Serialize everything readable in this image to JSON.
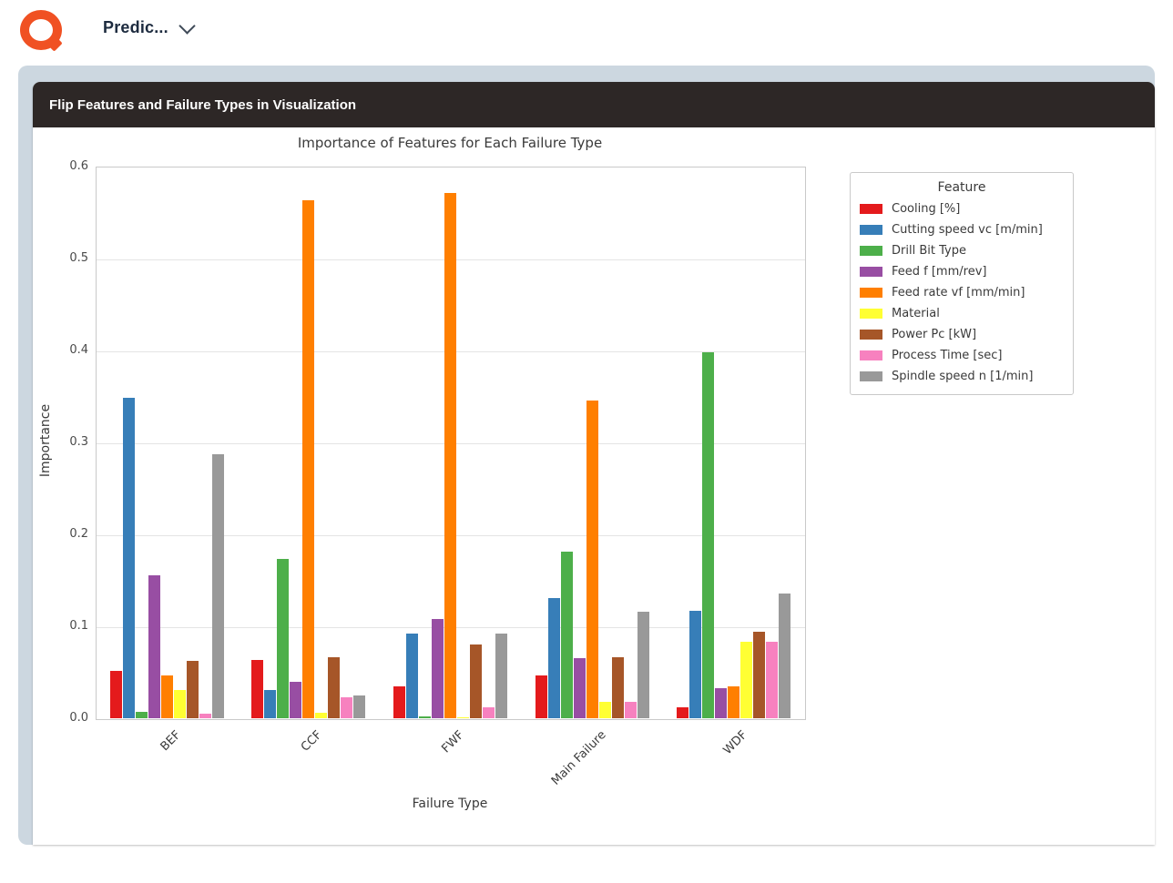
{
  "app": {
    "menu_label": "Predic...",
    "logo_color": "#f05123"
  },
  "card": {
    "header_title": "Flip Features and Failure Types in Visualization",
    "header_bg": "#2d2726",
    "panel_bg": "#ccd7e0"
  },
  "chart_data": {
    "type": "bar",
    "title": "Importance of Features for Each Failure Type",
    "xlabel": "Failure Type",
    "ylabel": "Importance",
    "ylim": [
      0,
      0.6
    ],
    "yticks": [
      "0.0",
      "0.1",
      "0.2",
      "0.3",
      "0.4",
      "0.5",
      "0.6"
    ],
    "grid": "horizontal",
    "legend_title": "Feature",
    "legend_position": "outside-right",
    "categories": [
      "BEF",
      "CCF",
      "FWF",
      "Main Failure",
      "WDF"
    ],
    "series": [
      {
        "name": "Cooling [%]",
        "color": "#e41a1c",
        "values": [
          0.051,
          0.063,
          0.035,
          0.047,
          0.012
        ]
      },
      {
        "name": "Cutting speed vc [m/min]",
        "color": "#377eb8",
        "values": [
          0.349,
          0.031,
          0.092,
          0.131,
          0.117
        ]
      },
      {
        "name": "Drill Bit Type",
        "color": "#4daf4a",
        "values": [
          0.007,
          0.173,
          0.002,
          0.181,
          0.398
        ]
      },
      {
        "name": "Feed f [mm/rev]",
        "color": "#984ea3",
        "values": [
          0.155,
          0.04,
          0.108,
          0.065,
          0.033
        ]
      },
      {
        "name": "Feed rate vf [mm/min]",
        "color": "#ff7f00",
        "values": [
          0.047,
          0.563,
          0.571,
          0.346,
          0.035
        ]
      },
      {
        "name": "Material",
        "color": "#ffff33",
        "values": [
          0.031,
          0.006,
          0.001,
          0.018,
          0.083
        ]
      },
      {
        "name": "Power Pc [kW]",
        "color": "#a65628",
        "values": [
          0.062,
          0.066,
          0.08,
          0.066,
          0.094
        ]
      },
      {
        "name": "Process Time [sec]",
        "color": "#f781bf",
        "values": [
          0.005,
          0.023,
          0.012,
          0.018,
          0.083
        ]
      },
      {
        "name": "Spindle speed n [1/min]",
        "color": "#999999",
        "values": [
          0.287,
          0.025,
          0.092,
          0.116,
          0.136
        ]
      }
    ]
  }
}
